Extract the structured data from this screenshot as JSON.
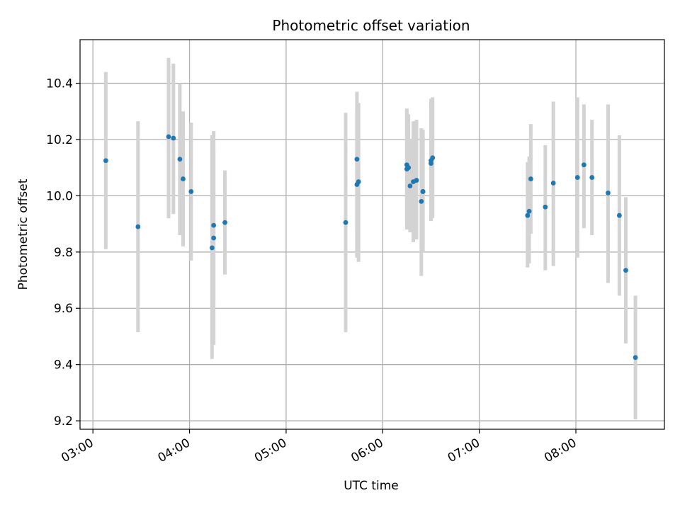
{
  "chart_data": {
    "type": "scatter",
    "title": "Photometric offset variation",
    "xlabel": "UTC time",
    "ylabel": "Photometric offset",
    "x_ticks": [
      "03:00",
      "04:00",
      "05:00",
      "06:00",
      "07:00",
      "08:00"
    ],
    "y_ticks": [
      "9.2",
      "9.4",
      "9.6",
      "9.8",
      "10.0",
      "10.2",
      "10.4"
    ],
    "xlim": [
      "02:52",
      "08:55"
    ],
    "ylim": [
      9.17,
      10.555
    ],
    "grid": true,
    "colors": {
      "point": "#1f77b4",
      "errorbar": "#d3d3d3",
      "grid": "#b0b0b0"
    },
    "points": [
      {
        "t": "03:08",
        "y": 10.125,
        "lo": 9.81,
        "hi": 10.44
      },
      {
        "t": "03:28",
        "y": 9.89,
        "lo": 9.515,
        "hi": 10.265
      },
      {
        "t": "03:47",
        "y": 10.21,
        "lo": 9.92,
        "hi": 10.49
      },
      {
        "t": "03:50",
        "y": 10.205,
        "lo": 9.935,
        "hi": 10.47
      },
      {
        "t": "03:54",
        "y": 10.13,
        "lo": 9.86,
        "hi": 10.4
      },
      {
        "t": "03:56",
        "y": 10.06,
        "lo": 9.82,
        "hi": 10.3
      },
      {
        "t": "04:01",
        "y": 10.015,
        "lo": 9.77,
        "hi": 10.26
      },
      {
        "t": "04:14",
        "y": 9.815,
        "lo": 9.42,
        "hi": 10.215
      },
      {
        "t": "04:15",
        "y": 9.85,
        "lo": 9.47,
        "hi": 10.23
      },
      {
        "t": "04:15",
        "y": 9.895,
        "lo": 9.63,
        "hi": 10.16
      },
      {
        "t": "04:22",
        "y": 9.905,
        "lo": 9.72,
        "hi": 10.09
      },
      {
        "t": "05:37",
        "y": 9.905,
        "lo": 9.515,
        "hi": 10.295
      },
      {
        "t": "05:44",
        "y": 10.13,
        "lo": 9.885,
        "hi": 10.37
      },
      {
        "t": "05:44",
        "y": 10.04,
        "lo": 9.78,
        "hi": 10.3
      },
      {
        "t": "05:45",
        "y": 10.05,
        "lo": 9.765,
        "hi": 10.33
      },
      {
        "t": "06:15",
        "y": 10.11,
        "lo": 9.91,
        "hi": 10.31
      },
      {
        "t": "06:15",
        "y": 10.095,
        "lo": 9.88,
        "hi": 10.305
      },
      {
        "t": "06:16",
        "y": 10.1,
        "lo": 9.925,
        "hi": 10.29
      },
      {
        "t": "06:17",
        "y": 10.035,
        "lo": 9.87,
        "hi": 10.2
      },
      {
        "t": "06:19",
        "y": 10.05,
        "lo": 9.835,
        "hi": 10.265
      },
      {
        "t": "06:21",
        "y": 10.055,
        "lo": 9.845,
        "hi": 10.27
      },
      {
        "t": "06:24",
        "y": 9.98,
        "lo": 9.715,
        "hi": 10.24
      },
      {
        "t": "06:25",
        "y": 10.015,
        "lo": 9.8,
        "hi": 10.235
      },
      {
        "t": "06:25",
        "y": 10.015,
        "lo": 9.82,
        "hi": 10.21
      },
      {
        "t": "06:30",
        "y": 10.115,
        "lo": 9.935,
        "hi": 10.305
      },
      {
        "t": "06:30",
        "y": 10.125,
        "lo": 9.91,
        "hi": 10.345
      },
      {
        "t": "06:31",
        "y": 10.135,
        "lo": 9.92,
        "hi": 10.35
      },
      {
        "t": "07:30",
        "y": 9.93,
        "lo": 9.745,
        "hi": 10.12
      },
      {
        "t": "07:31",
        "y": 9.945,
        "lo": 9.76,
        "hi": 10.14
      },
      {
        "t": "07:32",
        "y": 10.06,
        "lo": 9.865,
        "hi": 10.255
      },
      {
        "t": "07:41",
        "y": 9.96,
        "lo": 9.735,
        "hi": 10.18
      },
      {
        "t": "07:46",
        "y": 10.045,
        "lo": 9.75,
        "hi": 10.335
      },
      {
        "t": "08:01",
        "y": 10.065,
        "lo": 9.78,
        "hi": 10.35
      },
      {
        "t": "08:05",
        "y": 10.11,
        "lo": 9.885,
        "hi": 10.325
      },
      {
        "t": "08:10",
        "y": 10.065,
        "lo": 9.86,
        "hi": 10.27
      },
      {
        "t": "08:20",
        "y": 10.01,
        "lo": 9.69,
        "hi": 10.325
      },
      {
        "t": "08:27",
        "y": 9.93,
        "lo": 9.645,
        "hi": 10.215
      },
      {
        "t": "08:31",
        "y": 9.735,
        "lo": 9.475,
        "hi": 9.995
      },
      {
        "t": "08:37",
        "y": 9.425,
        "lo": 9.205,
        "hi": 9.645
      }
    ]
  }
}
